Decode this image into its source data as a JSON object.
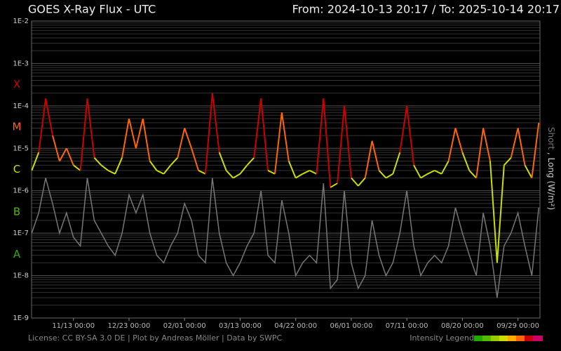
{
  "chart_data": {
    "type": "line",
    "title": "GOES X-Ray Flux - UTC",
    "subtitle": "From: 2024-10-13 20:17  /  To: 2025-10-14 20:17",
    "log_scale": true,
    "grid": true,
    "xlim": [
      "2024-10-13 20:17",
      "2025-10-14 20:17"
    ],
    "xticks": [
      {
        "value": "2024-11-13 00:00",
        "label": "11/13 00:00"
      },
      {
        "value": "2024-12-23 00:00",
        "label": "12/23 00:00"
      },
      {
        "value": "2025-02-01 00:00",
        "label": "02/01 00:00"
      },
      {
        "value": "2025-03-13 00:00",
        "label": "03/13 00:00"
      },
      {
        "value": "2025-04-22 00:00",
        "label": "04/22 00:00"
      },
      {
        "value": "2025-06-01 00:00",
        "label": "06/01 00:00"
      },
      {
        "value": "2025-07-11 00:00",
        "label": "07/11 00:00"
      },
      {
        "value": "2025-08-20 00:00",
        "label": "08/20 00:00"
      },
      {
        "value": "2025-09-29 00:00",
        "label": "09/29 00:00"
      }
    ],
    "ylim": [
      1e-09,
      0.01
    ],
    "yticks": [
      {
        "value": 1e-09,
        "label": "1E-9"
      },
      {
        "value": 1e-08,
        "label": "1E-8"
      },
      {
        "value": 1e-07,
        "label": "1E-7"
      },
      {
        "value": 1e-06,
        "label": "1E-6"
      },
      {
        "value": 1e-05,
        "label": "1E-5"
      },
      {
        "value": 0.0001,
        "label": "1E-4"
      },
      {
        "value": 0.001,
        "label": "1E-3"
      },
      {
        "value": 0.01,
        "label": "1E-2"
      }
    ],
    "flare_classes": [
      {
        "label": "A",
        "min": 1e-08,
        "color": "#33aa00"
      },
      {
        "label": "B",
        "min": 1e-07,
        "color": "#55bb00"
      },
      {
        "label": "C",
        "min": 1e-06,
        "color": "#ccdd00"
      },
      {
        "label": "M",
        "min": 1e-05,
        "color": "#ff6600"
      },
      {
        "label": "X",
        "min": 0.0001,
        "color": "#cc0000"
      }
    ],
    "legend_separator": " , ",
    "x": [
      "2024-10-14",
      "2024-10-19",
      "2024-10-24",
      "2024-10-29",
      "2024-11-03",
      "2024-11-08",
      "2024-11-13",
      "2024-11-18",
      "2024-11-23",
      "2024-11-28",
      "2024-12-03",
      "2024-12-08",
      "2024-12-13",
      "2024-12-18",
      "2024-12-23",
      "2024-12-28",
      "2025-01-02",
      "2025-01-07",
      "2025-01-12",
      "2025-01-17",
      "2025-01-22",
      "2025-01-27",
      "2025-02-01",
      "2025-02-06",
      "2025-02-11",
      "2025-02-16",
      "2025-02-21",
      "2025-02-26",
      "2025-03-03",
      "2025-03-08",
      "2025-03-13",
      "2025-03-18",
      "2025-03-23",
      "2025-03-28",
      "2025-04-02",
      "2025-04-07",
      "2025-04-12",
      "2025-04-17",
      "2025-04-22",
      "2025-04-27",
      "2025-05-02",
      "2025-05-07",
      "2025-05-12",
      "2025-05-17",
      "2025-05-22",
      "2025-05-27",
      "2025-06-01",
      "2025-06-06",
      "2025-06-11",
      "2025-06-16",
      "2025-06-21",
      "2025-06-26",
      "2025-07-01",
      "2025-07-06",
      "2025-07-11",
      "2025-07-16",
      "2025-07-21",
      "2025-07-26",
      "2025-07-31",
      "2025-08-05",
      "2025-08-10",
      "2025-08-15",
      "2025-08-20",
      "2025-08-25",
      "2025-08-30",
      "2025-09-04",
      "2025-09-09",
      "2025-09-14",
      "2025-09-19",
      "2025-09-24",
      "2025-09-29",
      "2025-10-04",
      "2025-10-09",
      "2025-10-14"
    ],
    "series": [
      {
        "name": "Short",
        "color": "#777777",
        "values": [
          1e-07,
          3e-07,
          2e-06,
          5e-07,
          1e-07,
          3e-07,
          8e-08,
          5e-08,
          2e-06,
          2e-07,
          1e-07,
          5e-08,
          3e-08,
          1e-07,
          8e-07,
          3e-07,
          8e-07,
          1e-07,
          3e-08,
          2e-08,
          5e-08,
          1e-07,
          5e-07,
          2e-07,
          3e-08,
          2e-08,
          2e-06,
          1e-07,
          2e-08,
          1e-08,
          2e-08,
          5e-08,
          1e-07,
          1e-06,
          3e-08,
          2e-08,
          6e-07,
          1e-07,
          1e-08,
          2e-08,
          3e-08,
          2e-08,
          1.5e-06,
          5e-09,
          8e-09,
          1e-06,
          2e-08,
          5e-09,
          1e-08,
          2e-07,
          3e-08,
          1e-08,
          2e-08,
          1e-07,
          1e-06,
          5e-08,
          1e-08,
          2e-08,
          3e-08,
          2e-08,
          5e-08,
          4e-07,
          1e-07,
          3e-08,
          1e-08,
          3e-07,
          5e-08,
          3e-09,
          5e-08,
          1e-07,
          3e-07,
          5e-08,
          1e-08,
          4e-07
        ]
      },
      {
        "name": "Long (W/m²)",
        "color": "#dddddd",
        "values": [
          3e-06,
          8e-06,
          0.00015,
          2e-05,
          5e-06,
          1e-05,
          4e-06,
          3e-06,
          0.00015,
          6e-06,
          4e-06,
          3e-06,
          2.5e-06,
          6e-06,
          5e-05,
          1e-05,
          5e-05,
          5e-06,
          3e-06,
          2.5e-06,
          4e-06,
          6e-06,
          3e-05,
          1e-05,
          3e-06,
          2.5e-06,
          0.0002,
          8e-06,
          3e-06,
          2e-06,
          2.5e-06,
          4e-06,
          6e-06,
          0.00015,
          3e-06,
          2.5e-06,
          7e-05,
          5e-06,
          2e-06,
          2.5e-06,
          3e-06,
          2.5e-06,
          0.00015,
          1.2e-06,
          1.5e-06,
          0.0001,
          2e-06,
          1.3e-06,
          2e-06,
          1.5e-05,
          3e-06,
          2e-06,
          2.5e-06,
          8e-06,
          0.0001,
          4e-06,
          2e-06,
          2.5e-06,
          3e-06,
          2.5e-06,
          5e-06,
          3e-05,
          8e-06,
          3e-06,
          2e-06,
          3e-05,
          5e-06,
          2e-08,
          4e-06,
          6e-06,
          3e-05,
          4e-06,
          2e-06,
          4e-05
        ]
      }
    ],
    "footer": "License: CC BY-SA 3.0 DE | Plot by Andreas Möller | Data by SWPC",
    "intensity_legend": "Intensity Legend"
  }
}
